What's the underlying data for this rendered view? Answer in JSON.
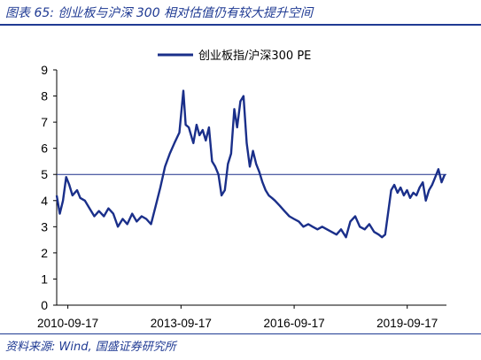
{
  "title": "图表 65: 创业板与沪深 300 相对估值仍有较大提升空间",
  "source": "资料来源: Wind, 国盛证券研究所",
  "colors": {
    "line": "#1a2f8a",
    "ref_line": "#1a2f8a",
    "text": "#1f3a93",
    "axis": "#000000"
  },
  "chart_data": {
    "type": "line",
    "title": "",
    "xlabel": "",
    "ylabel": "",
    "ylim": [
      0,
      9
    ],
    "yticks": [
      "0",
      "1",
      "2",
      "3",
      "4",
      "5",
      "6",
      "7",
      "8",
      "9"
    ],
    "xlim": [
      "2010-06-01",
      "2020-10-01"
    ],
    "xticks": [
      "2010-09-17",
      "2013-09-17",
      "2016-09-17",
      "2019-09-17"
    ],
    "grid": false,
    "legend": "top-center",
    "reference_line": {
      "y": 5.0
    },
    "series": [
      {
        "name": "创业板指/沪深300 PE",
        "points": [
          [
            "2010-06-01",
            4.2
          ],
          [
            "2010-07-01",
            3.5
          ],
          [
            "2010-08-01",
            4.0
          ],
          [
            "2010-09-01",
            4.9
          ],
          [
            "2010-10-01",
            4.6
          ],
          [
            "2010-11-01",
            4.2
          ],
          [
            "2010-12-15",
            4.4
          ],
          [
            "2011-01-15",
            4.1
          ],
          [
            "2011-03-01",
            4.0
          ],
          [
            "2011-04-15",
            3.7
          ],
          [
            "2011-06-01",
            3.4
          ],
          [
            "2011-07-15",
            3.6
          ],
          [
            "2011-09-01",
            3.4
          ],
          [
            "2011-10-15",
            3.7
          ],
          [
            "2011-12-01",
            3.5
          ],
          [
            "2012-01-15",
            3.0
          ],
          [
            "2012-03-01",
            3.3
          ],
          [
            "2012-04-15",
            3.1
          ],
          [
            "2012-06-01",
            3.5
          ],
          [
            "2012-07-15",
            3.2
          ],
          [
            "2012-09-01",
            3.4
          ],
          [
            "2012-10-15",
            3.3
          ],
          [
            "2012-12-01",
            3.1
          ],
          [
            "2013-01-15",
            3.8
          ],
          [
            "2013-03-01",
            4.5
          ],
          [
            "2013-04-15",
            5.3
          ],
          [
            "2013-06-01",
            5.8
          ],
          [
            "2013-07-15",
            6.2
          ],
          [
            "2013-09-01",
            6.6
          ],
          [
            "2013-10-10",
            8.2
          ],
          [
            "2013-11-01",
            6.9
          ],
          [
            "2013-12-01",
            6.8
          ],
          [
            "2014-01-15",
            6.2
          ],
          [
            "2014-02-15",
            6.9
          ],
          [
            "2014-03-15",
            6.5
          ],
          [
            "2014-04-15",
            6.7
          ],
          [
            "2014-05-15",
            6.3
          ],
          [
            "2014-06-15",
            6.8
          ],
          [
            "2014-07-15",
            5.5
          ],
          [
            "2014-08-15",
            5.3
          ],
          [
            "2014-09-15",
            5.0
          ],
          [
            "2014-10-15",
            4.2
          ],
          [
            "2014-11-15",
            4.4
          ],
          [
            "2014-12-15",
            5.4
          ],
          [
            "2015-01-15",
            5.8
          ],
          [
            "2015-02-15",
            7.5
          ],
          [
            "2015-03-15",
            6.8
          ],
          [
            "2015-04-15",
            7.8
          ],
          [
            "2015-05-15",
            8.0
          ],
          [
            "2015-06-15",
            6.2
          ],
          [
            "2015-07-15",
            5.3
          ],
          [
            "2015-08-15",
            5.9
          ],
          [
            "2015-09-15",
            5.4
          ],
          [
            "2015-10-15",
            5.1
          ],
          [
            "2015-11-15",
            4.7
          ],
          [
            "2015-12-15",
            4.4
          ],
          [
            "2016-01-15",
            4.2
          ],
          [
            "2016-02-15",
            4.1
          ],
          [
            "2016-03-15",
            4.0
          ],
          [
            "2016-05-01",
            3.8
          ],
          [
            "2016-06-15",
            3.6
          ],
          [
            "2016-08-01",
            3.4
          ],
          [
            "2016-09-15",
            3.3
          ],
          [
            "2016-11-01",
            3.2
          ],
          [
            "2016-12-15",
            3.0
          ],
          [
            "2017-02-01",
            3.1
          ],
          [
            "2017-03-15",
            3.0
          ],
          [
            "2017-05-01",
            2.9
          ],
          [
            "2017-06-15",
            3.0
          ],
          [
            "2017-08-01",
            2.9
          ],
          [
            "2017-09-15",
            2.8
          ],
          [
            "2017-11-01",
            2.7
          ],
          [
            "2017-12-15",
            2.9
          ],
          [
            "2018-02-01",
            2.6
          ],
          [
            "2018-03-15",
            3.2
          ],
          [
            "2018-05-01",
            3.4
          ],
          [
            "2018-06-15",
            3.0
          ],
          [
            "2018-08-01",
            2.9
          ],
          [
            "2018-09-15",
            3.1
          ],
          [
            "2018-11-01",
            2.8
          ],
          [
            "2018-12-15",
            2.7
          ],
          [
            "2019-01-15",
            2.6
          ],
          [
            "2019-02-15",
            2.7
          ],
          [
            "2019-03-15",
            3.5
          ],
          [
            "2019-04-15",
            4.4
          ],
          [
            "2019-05-15",
            4.6
          ],
          [
            "2019-06-15",
            4.3
          ],
          [
            "2019-07-15",
            4.5
          ],
          [
            "2019-08-15",
            4.2
          ],
          [
            "2019-09-15",
            4.4
          ],
          [
            "2019-10-15",
            4.1
          ],
          [
            "2019-11-15",
            4.3
          ],
          [
            "2019-12-15",
            4.2
          ],
          [
            "2020-01-15",
            4.5
          ],
          [
            "2020-02-15",
            4.7
          ],
          [
            "2020-03-15",
            4.0
          ],
          [
            "2020-04-15",
            4.4
          ],
          [
            "2020-05-15",
            4.6
          ],
          [
            "2020-06-15",
            4.9
          ],
          [
            "2020-07-15",
            5.2
          ],
          [
            "2020-08-15",
            4.7
          ],
          [
            "2020-09-15",
            5.0
          ]
        ]
      }
    ]
  }
}
